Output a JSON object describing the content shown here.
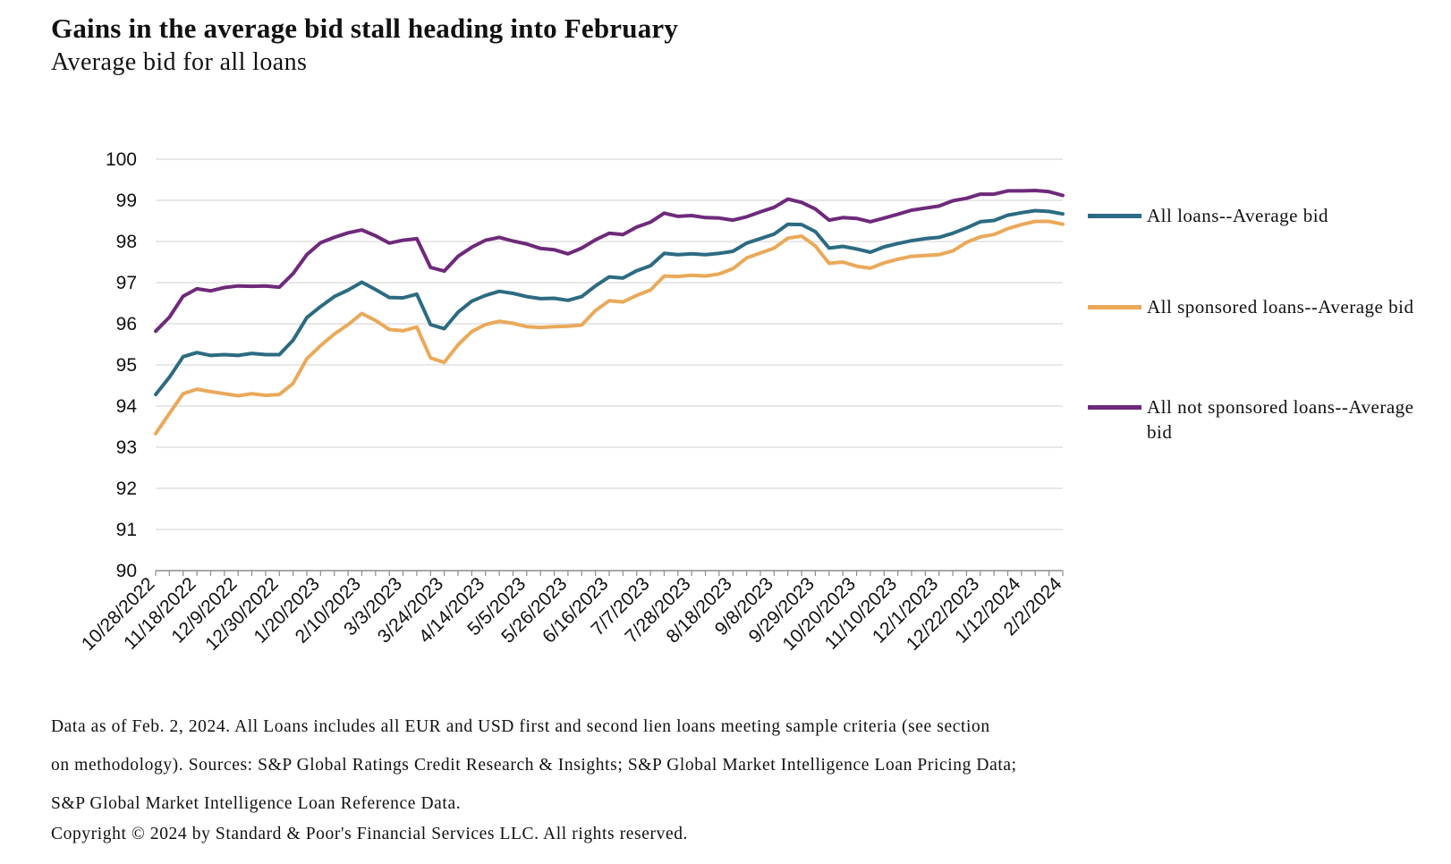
{
  "title": "Gains in the average bid stall heading into February",
  "subtitle": "Average bid for all loans",
  "footnote": {
    "line1": "Data as of Feb. 2, 2024. All Loans includes all EUR and USD first and second lien loans meeting sample criteria (see section",
    "line2": "on methodology). Sources: S&P Global Ratings Credit Research & Insights; S&P Global Market Intelligence Loan Pricing Data;",
    "line3": "S&P Global Market Intelligence Loan Reference Data."
  },
  "copyright": "Copyright © 2024 by Standard & Poor's Financial Services LLC. All rights reserved.",
  "chart_data": {
    "type": "line",
    "title": "Gains in the average bid stall heading into February",
    "subtitle": "Average bid for all loans",
    "xlabel": "",
    "ylabel": "",
    "ylim": [
      90,
      100
    ],
    "yticks": [
      90,
      91,
      92,
      93,
      94,
      95,
      96,
      97,
      98,
      99,
      100
    ],
    "grid": true,
    "legend_position": "right",
    "x_tick_labels": [
      "10/28/2022",
      "11/18/2022",
      "12/9/2022",
      "12/30/2022",
      "1/20/2023",
      "2/10/2023",
      "3/3/2023",
      "3/24/2023",
      "4/14/2023",
      "5/5/2023",
      "5/26/2023",
      "6/16/2023",
      "7/7/2023",
      "7/28/2023",
      "8/18/2023",
      "9/8/2023",
      "9/29/2023",
      "10/20/2023",
      "11/10/2023",
      "12/1/2023",
      "12/22/2023",
      "1/12/2024",
      "2/2/2024"
    ],
    "x_label_every": 3,
    "series": [
      {
        "name": "All loans--Average bid",
        "color": "#2c6b82",
        "values": [
          94.28,
          94.7,
          95.2,
          95.3,
          95.23,
          95.25,
          95.23,
          95.28,
          95.25,
          95.25,
          95.6,
          96.15,
          96.42,
          96.66,
          96.82,
          97.01,
          96.83,
          96.64,
          96.63,
          96.72,
          95.98,
          95.88,
          96.28,
          96.55,
          96.69,
          96.79,
          96.74,
          96.66,
          96.61,
          96.62,
          96.57,
          96.66,
          96.92,
          97.14,
          97.11,
          97.29,
          97.41,
          97.71,
          97.68,
          97.7,
          97.68,
          97.71,
          97.76,
          97.96,
          98.07,
          98.18,
          98.42,
          98.41,
          98.24,
          97.84,
          97.88,
          97.82,
          97.74,
          97.87,
          97.95,
          98.02,
          98.07,
          98.1,
          98.2,
          98.33,
          98.48,
          98.51,
          98.64,
          98.7,
          98.75,
          98.73,
          98.67
        ]
      },
      {
        "name": "All sponsored loans--Average bid",
        "color": "#eaa95a",
        "values": [
          93.33,
          93.82,
          94.3,
          94.41,
          94.35,
          94.3,
          94.25,
          94.3,
          94.26,
          94.28,
          94.55,
          95.15,
          95.47,
          95.75,
          95.98,
          96.25,
          96.08,
          95.86,
          95.83,
          95.92,
          95.17,
          95.06,
          95.49,
          95.81,
          95.98,
          96.06,
          96.01,
          95.93,
          95.91,
          95.93,
          95.94,
          95.97,
          96.32,
          96.56,
          96.53,
          96.69,
          96.82,
          97.16,
          97.15,
          97.18,
          97.16,
          97.21,
          97.34,
          97.6,
          97.72,
          97.84,
          98.08,
          98.13,
          97.89,
          97.47,
          97.5,
          97.4,
          97.35,
          97.48,
          97.57,
          97.64,
          97.66,
          97.68,
          97.77,
          97.98,
          98.11,
          98.17,
          98.31,
          98.41,
          98.49,
          98.49,
          98.42
        ]
      },
      {
        "name": "All not sponsored loans--Average bid",
        "color": "#6e2a7a",
        "values": [
          95.82,
          96.16,
          96.67,
          96.85,
          96.8,
          96.88,
          96.92,
          96.91,
          96.92,
          96.89,
          97.22,
          97.68,
          97.97,
          98.1,
          98.21,
          98.28,
          98.14,
          97.96,
          98.03,
          98.07,
          97.37,
          97.28,
          97.64,
          97.86,
          98.03,
          98.1,
          98.01,
          97.94,
          97.83,
          97.8,
          97.7,
          97.84,
          98.04,
          98.2,
          98.17,
          98.35,
          98.47,
          98.69,
          98.61,
          98.63,
          98.58,
          98.57,
          98.52,
          98.6,
          98.72,
          98.83,
          99.03,
          98.95,
          98.79,
          98.52,
          98.58,
          98.56,
          98.48,
          98.57,
          98.66,
          98.76,
          98.81,
          98.86,
          98.99,
          99.05,
          99.15,
          99.15,
          99.23,
          99.23,
          99.24,
          99.21,
          99.12
        ]
      }
    ]
  }
}
